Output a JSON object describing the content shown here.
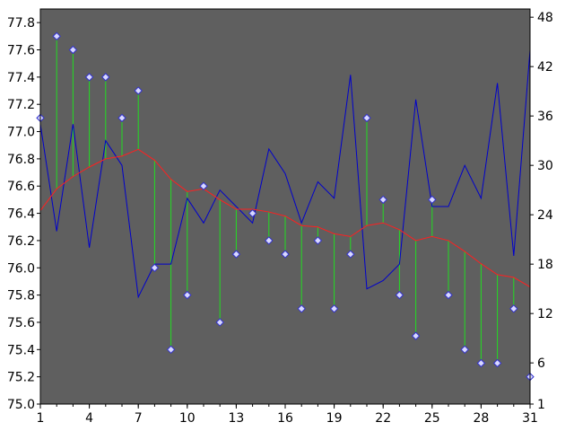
{
  "chart_data": {
    "type": "line",
    "x": [
      1,
      2,
      3,
      4,
      5,
      6,
      7,
      8,
      9,
      10,
      11,
      12,
      13,
      14,
      15,
      16,
      17,
      18,
      19,
      20,
      21,
      22,
      23,
      24,
      25,
      26,
      27,
      28,
      29,
      30,
      31
    ],
    "x_ticks": [
      1,
      4,
      7,
      10,
      13,
      16,
      19,
      22,
      25,
      28,
      31
    ],
    "left_axis": {
      "range": [
        75.0,
        77.9
      ],
      "ticks": [
        "75.0",
        "75.2",
        "75.4",
        "75.6",
        "75.8",
        "76.0",
        "76.2",
        "76.4",
        "76.6",
        "76.8",
        "77.0",
        "77.2",
        "77.4",
        "77.6",
        "77.8"
      ]
    },
    "right_axis": {
      "range": [
        1,
        49
      ],
      "ticks": [
        "1",
        "6",
        "12",
        "18",
        "24",
        "30",
        "36",
        "42",
        "48"
      ]
    },
    "series": [
      {
        "axis": "left",
        "style": "points-with-stems",
        "marker_color": "#d8d8ff",
        "stem_color": "#22dd22",
        "values": [
          77.1,
          77.7,
          77.6,
          77.4,
          77.4,
          77.1,
          77.3,
          76.0,
          75.4,
          75.8,
          76.6,
          75.6,
          76.1,
          76.4,
          76.2,
          76.1,
          75.7,
          76.2,
          75.7,
          76.1,
          77.1,
          76.5,
          75.8,
          75.5,
          76.5,
          75.8,
          75.4,
          75.3,
          75.3,
          75.7,
          75.2
        ]
      },
      {
        "axis": "left",
        "style": "line",
        "color": "#ff2020",
        "values": [
          76.42,
          76.58,
          76.67,
          76.74,
          76.8,
          76.82,
          76.87,
          76.79,
          76.65,
          76.56,
          76.58,
          76.5,
          76.43,
          76.43,
          76.41,
          76.38,
          76.31,
          76.3,
          76.25,
          76.23,
          76.31,
          76.33,
          76.28,
          76.2,
          76.23,
          76.2,
          76.12,
          76.03,
          75.95,
          75.93,
          75.86
        ]
      },
      {
        "axis": "right",
        "style": "line",
        "color": "#0000cc",
        "values": [
          35,
          22,
          35,
          20,
          33,
          30,
          14,
          18,
          18,
          26,
          23,
          27,
          25,
          23,
          32,
          29,
          23,
          28,
          26,
          41,
          15,
          16,
          18,
          38,
          25,
          25,
          30,
          26,
          40,
          19,
          44
        ]
      }
    ],
    "grid": false,
    "plot_background": "#5f5f5f"
  }
}
